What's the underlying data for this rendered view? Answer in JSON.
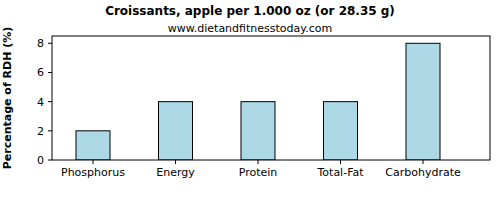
{
  "chart_data": {
    "type": "bar",
    "title": "Croissants, apple per 1.000 oz (or 28.35 g)",
    "subtitle": "www.dietandfitnesstoday.com",
    "y_label": "Percentage of RDH (%)",
    "categories": [
      "Phosphorus",
      "Energy",
      "Protein",
      "Total-Fat",
      "Carbohydrate"
    ],
    "values": [
      2,
      4,
      4,
      4,
      8
    ],
    "color": "#add8e6",
    "ylim": [
      0,
      8.5
    ],
    "yticks": [
      0,
      2,
      4,
      6,
      8
    ],
    "grid": false
  }
}
